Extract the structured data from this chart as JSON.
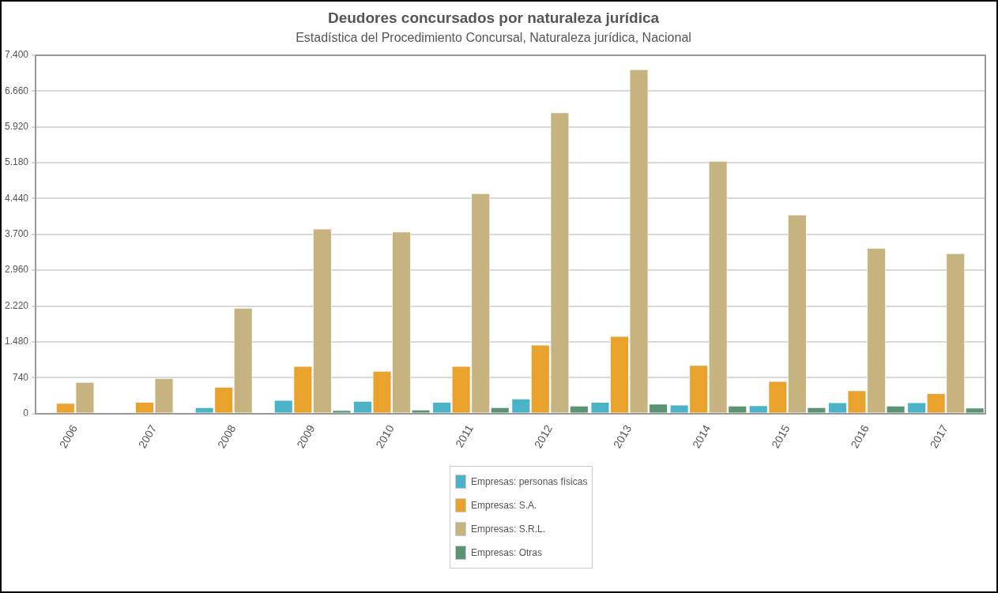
{
  "chart_data": {
    "type": "bar",
    "title": "Deudores concursados por naturaleza jurídica",
    "subtitle": "Estadística del Procedimiento Concursal, Naturaleza jurídica, Nacional",
    "categories": [
      "2006",
      "2007",
      "2008",
      "2009",
      "2010",
      "2011",
      "2012",
      "2013",
      "2014",
      "2015",
      "2016",
      "2017"
    ],
    "series": [
      {
        "name": "Empresas: personas físicas",
        "color": "#4bb3c8",
        "values": [
          null,
          10,
          130,
          280,
          260,
          240,
          310,
          240,
          180,
          170,
          230,
          230
        ]
      },
      {
        "name": "Empresas: S.A.",
        "color": "#e9a22c",
        "values": [
          220,
          240,
          550,
          980,
          880,
          980,
          1420,
          1600,
          1000,
          670,
          480,
          420
        ]
      },
      {
        "name": "Empresas: S.R.L.",
        "color": "#c6b37f",
        "values": [
          650,
          730,
          2180,
          3820,
          3760,
          4550,
          6220,
          7110,
          5220,
          4110,
          3420,
          3310
        ]
      },
      {
        "name": "Empresas: Otras",
        "color": "#5a9472",
        "values": [
          10,
          10,
          10,
          70,
          80,
          130,
          160,
          200,
          160,
          130,
          160,
          120
        ]
      }
    ],
    "ylim": [
      0,
      7400
    ],
    "yticks": [
      0,
      740,
      {
        "value": 1480,
        "label": "1.480"
      },
      {
        "value": 2220,
        "label": "2.220"
      },
      {
        "value": 2960,
        "label": "2.960"
      },
      {
        "value": 3700,
        "label": "3.700"
      },
      {
        "value": 4440,
        "label": "4.440"
      },
      {
        "value": 5180,
        "label": "5.180"
      },
      {
        "value": 5920,
        "label": "5.920"
      },
      {
        "value": 6660,
        "label": "6.660"
      },
      {
        "value": 7400,
        "label": "7.400"
      }
    ],
    "grid": "y",
    "legend": "bottom"
  }
}
